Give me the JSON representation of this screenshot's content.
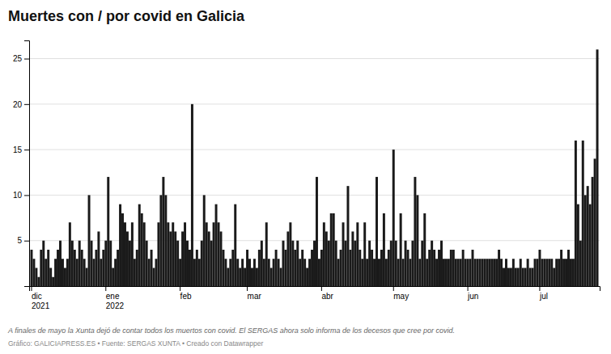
{
  "chart_data": {
    "type": "bar",
    "title": "Muertes con / por covid en Galicia",
    "footnotes": [
      "A finales de mayo la Xunta dejó de contar todos los muertos con covid. El SERGAS ahora solo informa de los decesos que cree por covid.",
      "Gráfico: GALICIAPRESS.ES • Fuente: SERGAS XUNTA • Creado con Datawrapper"
    ],
    "color": "#1a1a1a",
    "grid": true,
    "ylim": [
      0,
      27
    ],
    "yticks": [
      5,
      10,
      15,
      20,
      25
    ],
    "categories": [
      "dic\n2021",
      null,
      null,
      null,
      null,
      null,
      null,
      null,
      null,
      null,
      null,
      null,
      null,
      null,
      null,
      null,
      null,
      null,
      null,
      null,
      null,
      null,
      null,
      null,
      null,
      null,
      null,
      null,
      null,
      null,
      null,
      "ene\n2022",
      null,
      null,
      null,
      null,
      null,
      null,
      null,
      null,
      null,
      null,
      null,
      null,
      null,
      null,
      null,
      null,
      null,
      null,
      null,
      null,
      null,
      null,
      null,
      null,
      null,
      null,
      null,
      null,
      null,
      null,
      "feb",
      null,
      null,
      null,
      null,
      null,
      null,
      null,
      null,
      null,
      null,
      null,
      null,
      null,
      null,
      null,
      null,
      null,
      null,
      null,
      null,
      null,
      null,
      null,
      null,
      null,
      null,
      null,
      "mar",
      null,
      null,
      null,
      null,
      null,
      null,
      null,
      null,
      null,
      null,
      null,
      null,
      null,
      null,
      null,
      null,
      null,
      null,
      null,
      null,
      null,
      null,
      null,
      null,
      null,
      null,
      null,
      null,
      null,
      null,
      "abr",
      null,
      null,
      null,
      null,
      null,
      null,
      null,
      null,
      null,
      null,
      null,
      null,
      null,
      null,
      null,
      null,
      null,
      null,
      null,
      null,
      null,
      null,
      null,
      null,
      null,
      null,
      null,
      null,
      null,
      "may",
      null,
      null,
      null,
      null,
      null,
      null,
      null,
      null,
      null,
      null,
      null,
      null,
      null,
      null,
      null,
      null,
      null,
      null,
      null,
      null,
      null,
      null,
      null,
      null,
      null,
      null,
      null,
      null,
      null,
      null,
      "jun",
      null,
      null,
      null,
      null,
      null,
      null,
      null,
      null,
      null,
      null,
      null,
      null,
      null,
      null,
      null,
      null,
      null,
      null,
      null,
      null,
      null,
      null,
      null,
      null,
      null,
      null,
      null,
      null,
      null,
      "jul",
      null,
      null,
      null,
      null,
      null,
      null,
      null,
      null,
      null,
      null,
      null,
      null,
      null,
      null,
      null,
      null,
      null,
      null,
      null,
      null,
      null,
      null,
      null,
      null
    ],
    "values": [
      4,
      3,
      2,
      1,
      4,
      5,
      3,
      4,
      2,
      1,
      3,
      4,
      5,
      3,
      2,
      3,
      7,
      5,
      4,
      3,
      5,
      4,
      3,
      2,
      10,
      5,
      3,
      4,
      6,
      3,
      4,
      5,
      12,
      5,
      2,
      3,
      4,
      9,
      8,
      7,
      6,
      5,
      7,
      3,
      4,
      9,
      8,
      7,
      5,
      3,
      4,
      2,
      3,
      7,
      10,
      12,
      10,
      7,
      6,
      7,
      6,
      5,
      3,
      6,
      7,
      5,
      4,
      20,
      3,
      4,
      3,
      5,
      10,
      7,
      6,
      5,
      7,
      9,
      7,
      6,
      4,
      3,
      2,
      3,
      4,
      9,
      3,
      2,
      3,
      2,
      4,
      3,
      2,
      3,
      2,
      4,
      5,
      3,
      7,
      3,
      2,
      3,
      4,
      3,
      2,
      5,
      4,
      6,
      7,
      5,
      4,
      5,
      3,
      4,
      3,
      2,
      3,
      4,
      5,
      12,
      3,
      4,
      7,
      6,
      5,
      8,
      8,
      5,
      3,
      4,
      7,
      5,
      11,
      4,
      6,
      5,
      7,
      4,
      3,
      7,
      3,
      5,
      4,
      3,
      12,
      3,
      4,
      8,
      3,
      4,
      5,
      15,
      5,
      3,
      8,
      3,
      5,
      4,
      3,
      5,
      12,
      10,
      3,
      5,
      8,
      3,
      4,
      5,
      4,
      3,
      4,
      5,
      3,
      3,
      3,
      4,
      4,
      3,
      3,
      3,
      4,
      3,
      3,
      3,
      4,
      3,
      3,
      3,
      3,
      3,
      3,
      3,
      3,
      3,
      3,
      4,
      3,
      2,
      3,
      2,
      2,
      3,
      2,
      2,
      3,
      2,
      2,
      3,
      2,
      2,
      3,
      3,
      4,
      3,
      3,
      3,
      3,
      3,
      2,
      3,
      3,
      4,
      3,
      3,
      4,
      3,
      3,
      16,
      9,
      5,
      16,
      10,
      11,
      9,
      12,
      14,
      26
    ]
  }
}
